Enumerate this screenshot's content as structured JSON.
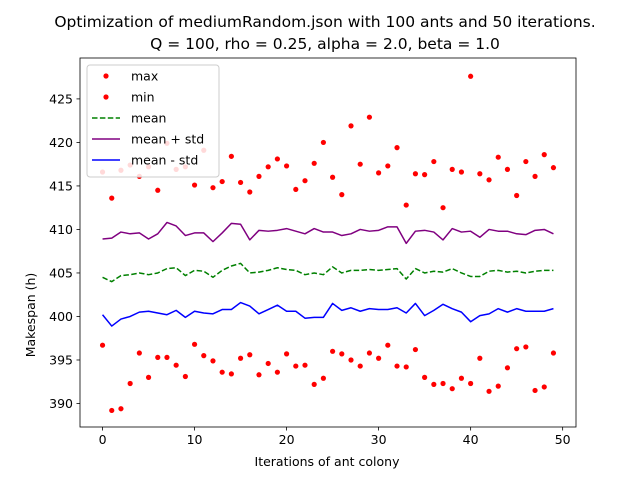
{
  "chart_data": {
    "type": "scatter",
    "title": [
      "Optimization of mediumRandom.json with 100 ants and 50 iterations.",
      "Q = 100, rho = 0.25, alpha = 2.0, beta = 1.0"
    ],
    "xlabel": "Iterations of ant colony",
    "ylabel": "Makespan (h)",
    "xlim": [
      -2.45,
      51.45
    ],
    "ylim": [
      387.3,
      429.7
    ],
    "xticks": [
      0,
      10,
      20,
      30,
      40,
      50
    ],
    "yticks": [
      390,
      395,
      400,
      405,
      410,
      415,
      420,
      425
    ],
    "grid": false,
    "legend_position": "top-left",
    "x": [
      0,
      1,
      2,
      3,
      4,
      5,
      6,
      7,
      8,
      9,
      10,
      11,
      12,
      13,
      14,
      15,
      16,
      17,
      18,
      19,
      20,
      21,
      22,
      23,
      24,
      25,
      26,
      27,
      28,
      29,
      30,
      31,
      32,
      33,
      34,
      35,
      36,
      37,
      38,
      39,
      40,
      41,
      42,
      43,
      44,
      45,
      46,
      47,
      48,
      49
    ],
    "series": [
      {
        "name": "max",
        "style": "dots",
        "color": "#ff0000",
        "values": [
          416.6,
          413.6,
          416.8,
          417.4,
          416.1,
          417.2,
          414.5,
          419.9,
          416.9,
          417.2,
          415.1,
          419.1,
          414.8,
          415.5,
          418.4,
          415.4,
          414.3,
          416.1,
          417.2,
          418.1,
          417.3,
          414.6,
          415.6,
          417.6,
          420.0,
          416.0,
          414.0,
          421.9,
          417.5,
          422.9,
          416.5,
          417.3,
          419.4,
          412.8,
          416.4,
          416.3,
          417.8,
          412.5,
          416.9,
          416.6,
          427.6,
          416.4,
          415.7,
          418.3,
          416.9,
          413.9,
          417.8,
          416.1,
          418.6,
          417.1
        ]
      },
      {
        "name": "min",
        "style": "dots",
        "color": "#ff0000",
        "values": [
          396.7,
          389.2,
          389.4,
          392.3,
          395.8,
          393.0,
          395.3,
          395.3,
          394.4,
          393.1,
          396.8,
          395.5,
          394.9,
          393.6,
          393.4,
          395.2,
          395.6,
          393.3,
          394.6,
          393.6,
          395.7,
          394.3,
          394.4,
          392.2,
          392.9,
          396.0,
          395.7,
          395.0,
          394.3,
          395.8,
          395.2,
          396.7,
          394.3,
          394.2,
          396.2,
          393.0,
          392.2,
          392.3,
          391.7,
          392.9,
          392.3,
          395.2,
          391.4,
          392.0,
          394.1,
          396.3,
          396.5,
          391.5,
          391.9,
          395.8
        ]
      },
      {
        "name": "mean",
        "style": "dashed",
        "color": "#008000",
        "values": [
          404.5,
          404.0,
          404.7,
          404.8,
          405.0,
          404.8,
          405.0,
          405.5,
          405.6,
          404.7,
          405.3,
          405.2,
          404.5,
          405.3,
          405.8,
          406.1,
          405.0,
          405.1,
          405.3,
          405.6,
          405.4,
          405.3,
          404.8,
          405.0,
          404.8,
          405.7,
          405.0,
          405.3,
          405.3,
          405.4,
          405.3,
          405.4,
          405.5,
          404.3,
          405.5,
          405.0,
          405.2,
          405.1,
          405.5,
          405.0,
          404.6,
          404.6,
          405.2,
          405.3,
          405.1,
          405.2,
          405.0,
          405.2,
          405.3,
          405.3
        ]
      },
      {
        "name": "mean + std",
        "style": "solid",
        "color": "#800080",
        "values": [
          408.9,
          409.0,
          409.7,
          409.5,
          409.6,
          408.9,
          409.5,
          410.8,
          410.4,
          409.3,
          409.6,
          409.6,
          408.6,
          409.6,
          410.7,
          410.6,
          408.8,
          409.9,
          409.8,
          409.9,
          410.1,
          409.8,
          409.5,
          410.1,
          409.7,
          409.7,
          409.3,
          409.5,
          410.0,
          409.8,
          409.9,
          410.3,
          410.3,
          408.4,
          409.8,
          409.9,
          409.7,
          408.8,
          410.1,
          409.7,
          409.8,
          409.1,
          410.0,
          409.8,
          409.8,
          409.5,
          409.4,
          409.9,
          410.0,
          409.5
        ]
      },
      {
        "name": "mean - std",
        "style": "solid",
        "color": "#0000ff",
        "values": [
          400.2,
          398.9,
          399.7,
          400.0,
          400.5,
          400.6,
          400.4,
          400.2,
          400.7,
          399.9,
          400.6,
          400.4,
          400.3,
          400.8,
          400.8,
          401.6,
          401.2,
          400.3,
          400.8,
          401.3,
          400.6,
          400.6,
          399.8,
          399.9,
          399.9,
          401.5,
          400.7,
          401.0,
          400.6,
          400.9,
          400.8,
          400.8,
          401.0,
          400.4,
          401.5,
          400.1,
          400.7,
          401.4,
          400.9,
          400.5,
          399.4,
          400.1,
          400.3,
          400.9,
          400.5,
          400.9,
          400.6,
          400.6,
          400.6,
          400.9
        ]
      }
    ],
    "legend": [
      "max",
      "min",
      "mean",
      "mean + std",
      "mean - std"
    ]
  }
}
